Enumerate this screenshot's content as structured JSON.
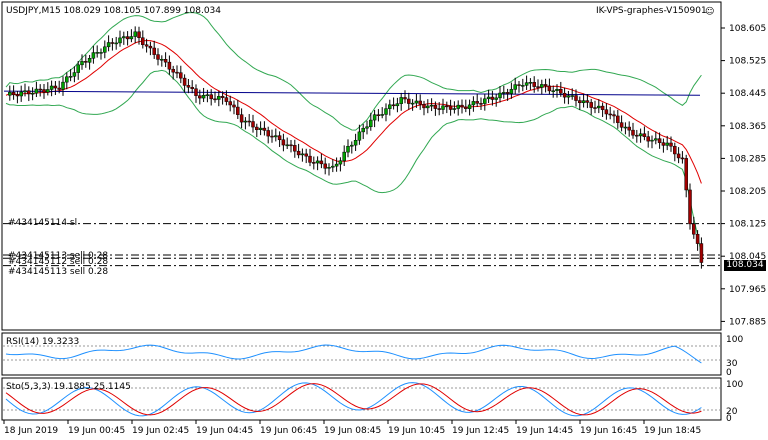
{
  "header": {
    "symbol_info": "USDJPY,M15  108.029 108.105 107.899 108.034",
    "account": "IK-VPS-graphes-V150901",
    "smiley": "☺"
  },
  "main_panel": {
    "price_scale": [
      "108.605",
      "108.525",
      "108.445",
      "108.365",
      "108.285",
      "108.205",
      "108.125",
      "108.045",
      "107.965",
      "107.885"
    ],
    "current_price": "108.034",
    "order_lines": [
      {
        "label": "#434145114 sl",
        "style": "dashdot",
        "price": 108.125
      },
      {
        "label": "#434145113 sell 0.28",
        "style": "dashdot",
        "price": 108.04
      },
      {
        "label": "#434145112 sell 0.28",
        "style": "dashdot",
        "price": 108.048
      },
      {
        "label": "#434145113 sell 0.28",
        "style": "dashdot",
        "price": 108.022
      }
    ]
  },
  "rsi_panel": {
    "label": "RSI(14) 19.3233",
    "scale": [
      "100",
      "30",
      "0"
    ]
  },
  "stoch_panel": {
    "label": "Sto(5,3,3) 19.1885 25.1145",
    "scale": [
      "100",
      "20",
      "0"
    ]
  },
  "time_axis": [
    "18 Jun 2019",
    "19 Jun 00:45",
    "19 Jun 02:45",
    "19 Jun 04:45",
    "19 Jun 06:45",
    "19 Jun 08:45",
    "19 Jun 10:45",
    "19 Jun 12:45",
    "19 Jun 14:45",
    "19 Jun 16:45",
    "19 Jun 18:45"
  ],
  "colors": {
    "bull": "#00a000",
    "bear": "#a00000",
    "bb": "#32a852",
    "ma_red": "#e00000",
    "ma_blue": "#00008b",
    "rsi": "#1e90ff",
    "stoch_main": "#1e90ff",
    "stoch_signal": "#e00000"
  }
}
